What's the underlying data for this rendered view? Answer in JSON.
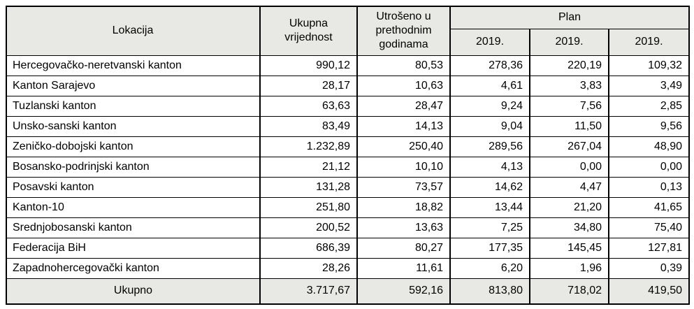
{
  "table": {
    "header": {
      "lokacija": "Lokacija",
      "ukupna_vrijednost": "Ukupna vrijednost",
      "utroseno": "Utrošeno u prethodnim godinama",
      "plan": "Plan",
      "plan_years": [
        "2019.",
        "2019.",
        "2019."
      ]
    },
    "rows": [
      {
        "lokacija": "Hercegovačko-neretvanski kanton",
        "values": [
          "990,12",
          "80,53",
          "278,36",
          "220,19",
          "109,32"
        ]
      },
      {
        "lokacija": "Kanton Sarajevo",
        "values": [
          "28,17",
          "10,63",
          "4,61",
          "3,83",
          "3,49"
        ]
      },
      {
        "lokacija": "Tuzlanski kanton",
        "values": [
          "63,63",
          "28,47",
          "9,24",
          "7,56",
          "2,85"
        ]
      },
      {
        "lokacija": "Unsko-sanski kanton",
        "values": [
          "83,49",
          "14,13",
          "9,04",
          "11,50",
          "9,56"
        ]
      },
      {
        "lokacija": "Zeničko-dobojski kanton",
        "values": [
          "1.232,89",
          "250,40",
          "289,56",
          "267,04",
          "48,90"
        ]
      },
      {
        "lokacija": "Bosansko-podrinjski kanton",
        "values": [
          "21,12",
          "10,10",
          "4,13",
          "0,00",
          "0,00"
        ]
      },
      {
        "lokacija": "Posavski kanton",
        "values": [
          "131,28",
          "73,57",
          "14,62",
          "4,47",
          "0,13"
        ]
      },
      {
        "lokacija": "Kanton-10",
        "values": [
          "251,80",
          "18,82",
          "13,44",
          "21,20",
          "41,65"
        ]
      },
      {
        "lokacija": "Srednjobosanski kanton",
        "values": [
          "200,52",
          "13,63",
          "7,25",
          "34,80",
          "75,40"
        ]
      },
      {
        "lokacija": "Federacija BiH",
        "values": [
          "686,39",
          "80,27",
          "177,35",
          "145,45",
          "127,81"
        ]
      },
      {
        "lokacija": "Zapadnohercegovački kanton",
        "values": [
          "28,26",
          "11,61",
          "6,20",
          "1,96",
          "0,39"
        ]
      }
    ],
    "total": {
      "label": "Ukupno",
      "values": [
        "3.717,67",
        "592,16",
        "813,80",
        "718,02",
        "419,50"
      ]
    }
  },
  "colors": {
    "header_bg": "#e8e8e5",
    "total_bg": "#e8e8e5",
    "border": "#000000",
    "text": "#000000",
    "page_bg": "#ffffff"
  }
}
